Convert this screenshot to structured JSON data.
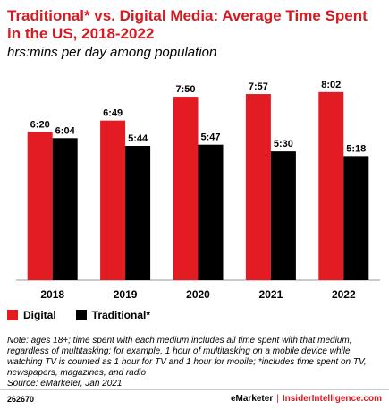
{
  "title": "Traditional* vs. Digital Media: Average Time Spent in the US, 2018-2022",
  "subtitle": "hrs:mins per day among population",
  "legend": [
    {
      "label": "Digital",
      "color": "#e31c23"
    },
    {
      "label": "Traditional*",
      "color": "#000000"
    }
  ],
  "note": "Note: ages 18+; time spent with each medium includes all time spent with that medium, regardless of multitasking; for example, 1 hour of multitasking on a mobile device while watching TV is counted as 1 hour for TV and 1 hour for mobile; *includes time spent on TV, newspapers, magazines, and radio",
  "source": "Source: eMarketer, Jan 2021",
  "footer": {
    "id": "262670",
    "brand": "eMarketer",
    "separator": "|",
    "site": "InsiderIntelligence.com"
  },
  "chart_data": {
    "type": "bar",
    "categories": [
      "2018",
      "2019",
      "2020",
      "2021",
      "2022"
    ],
    "series": [
      {
        "name": "Digital",
        "color": "#e31c23",
        "values": [
          380,
          409,
          470,
          477,
          482
        ],
        "labels": [
          "6:20",
          "6:49",
          "7:50",
          "7:57",
          "8:02"
        ]
      },
      {
        "name": "Traditional*",
        "color": "#000000",
        "values": [
          364,
          344,
          347,
          330,
          318
        ],
        "labels": [
          "6:04",
          "5:44",
          "5:47",
          "5:30",
          "5:18"
        ]
      }
    ],
    "units": "minutes per day",
    "ylim": [
      0,
      500
    ],
    "grid": false,
    "legend_position": "bottom-left"
  }
}
